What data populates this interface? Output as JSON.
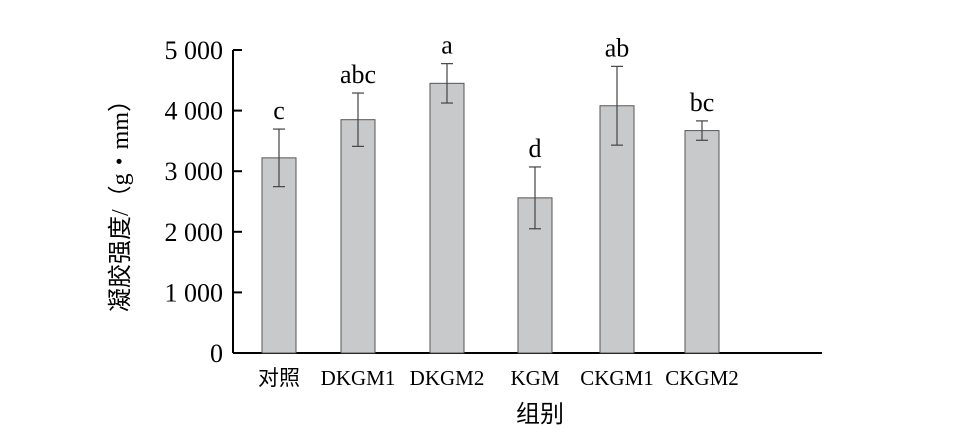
{
  "chart_data": {
    "type": "bar",
    "title": "",
    "xlabel": "组别",
    "ylabel": "凝胶强度/（g・mm）",
    "ylim": [
      0,
      5000
    ],
    "yticks": [
      0,
      1000,
      2000,
      3000,
      4000,
      5000
    ],
    "ytick_labels": [
      "0",
      "1 000",
      "2 000",
      "3 000",
      "4 000",
      "5 000"
    ],
    "categories": [
      "对照",
      "DKGM1",
      "DKGM2",
      "KGM",
      "CKGM1",
      "CKGM2"
    ],
    "values": [
      3220,
      3850,
      4450,
      2560,
      4080,
      3670
    ],
    "errors": [
      475,
      440,
      325,
      510,
      650,
      160
    ],
    "significance_labels": [
      "c",
      "abc",
      "a",
      "d",
      "ab",
      "bc"
    ],
    "bar_color": "#c8c9cb",
    "grid": false
  }
}
